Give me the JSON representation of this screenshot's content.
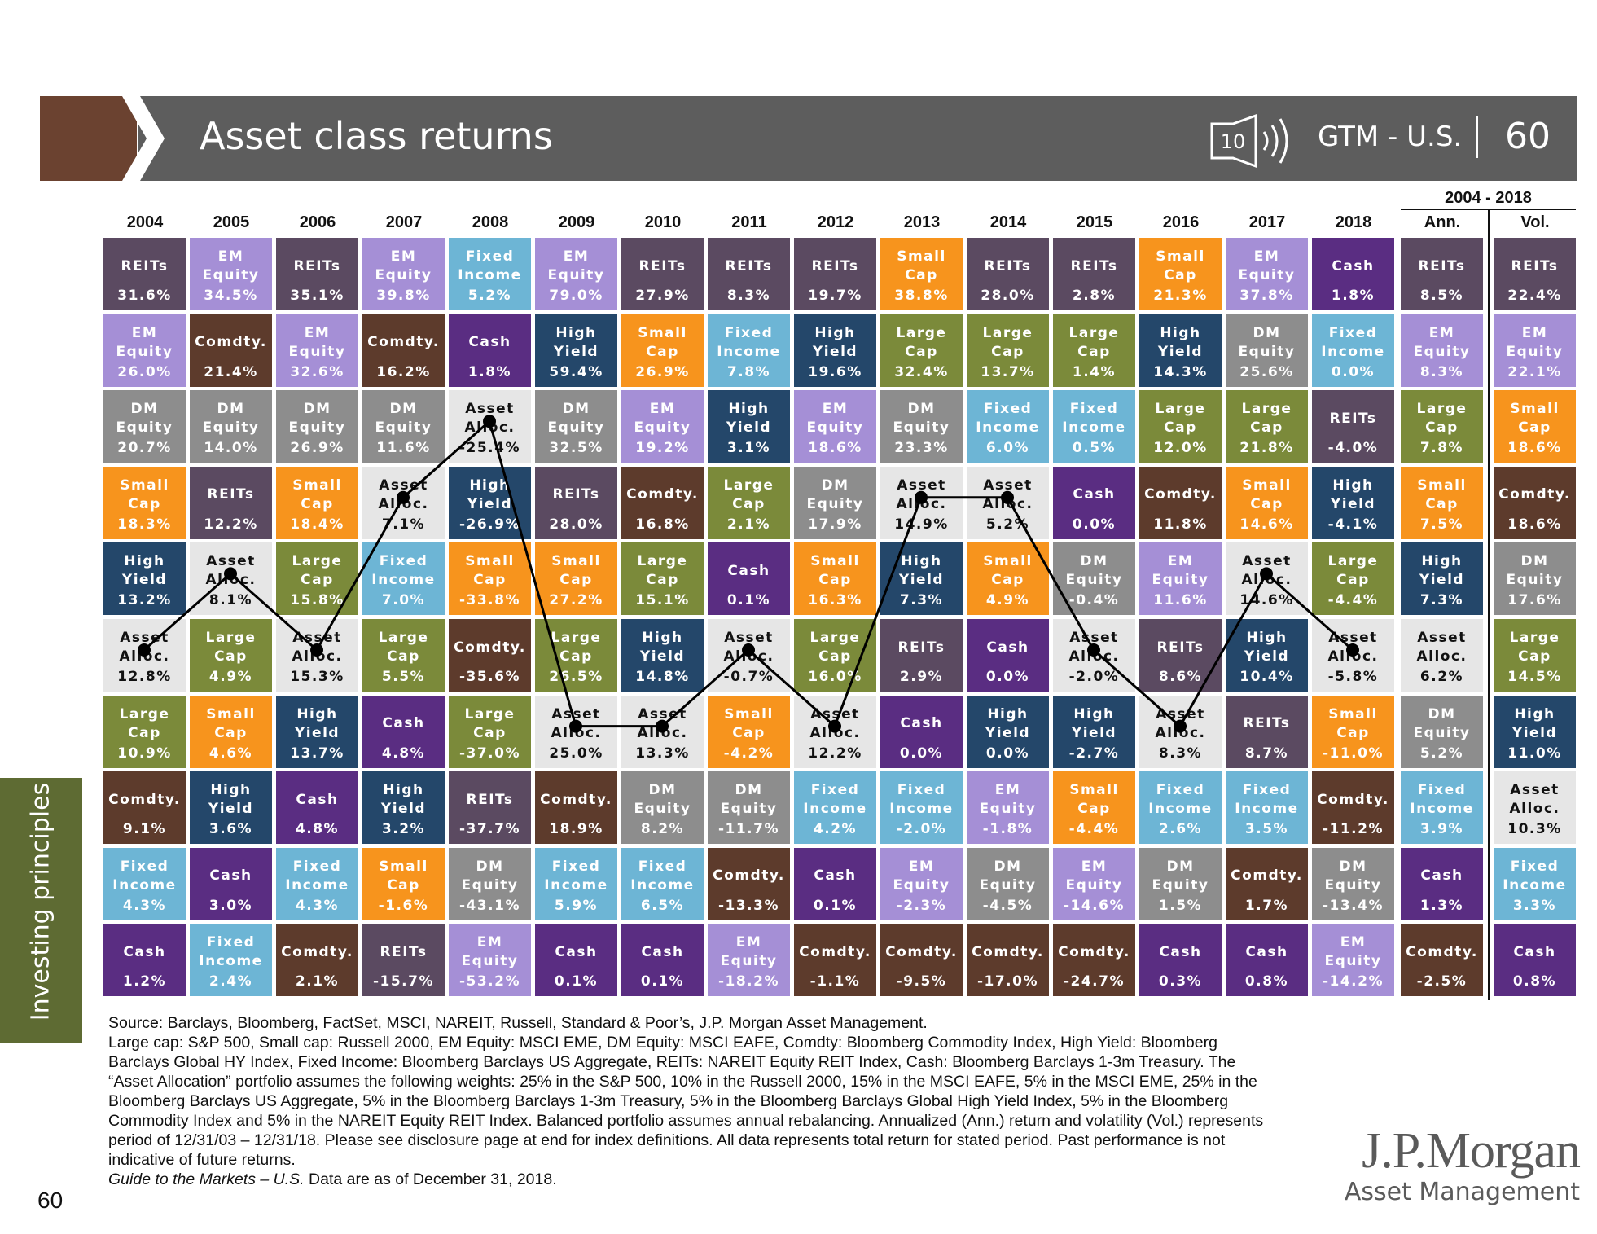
{
  "header": {
    "title": "Asset class returns",
    "icon": "10",
    "code": "GTM - U.S.",
    "page": "60"
  },
  "period": "2004 - 2018",
  "colors": {
    "REITs": {
      "fill": "#5b4a61",
      "text": "#ffffff"
    },
    "EM Equity": {
      "fill": "#a58fd6",
      "text": "#ffffff"
    },
    "DM Equity": {
      "fill": "#8d8d8d",
      "text": "#ffffff"
    },
    "Small Cap": {
      "fill": "#f7941d",
      "text": "#ffffff"
    },
    "High Yield": {
      "fill": "#24476a",
      "text": "#ffffff"
    },
    "Asset Alloc.": {
      "fill": "#e6e6e6",
      "text": "#111111"
    },
    "Large Cap": {
      "fill": "#7b8a3a",
      "text": "#ffffff"
    },
    "Comdty.": {
      "fill": "#5d3b2c",
      "text": "#ffffff"
    },
    "Fixed Income": {
      "fill": "#6db5d5",
      "text": "#ffffff"
    },
    "Cash": {
      "fill": "#5a2d82",
      "text": "#ffffff"
    }
  },
  "table": {
    "columns": [
      {
        "heading": "2004",
        "cells": [
          {
            "label": "REITs",
            "value": "31.6%"
          },
          {
            "label": "EM Equity",
            "value": "26.0%"
          },
          {
            "label": "DM Equity",
            "value": "20.7%"
          },
          {
            "label": "Small Cap",
            "value": "18.3%"
          },
          {
            "label": "High Yield",
            "value": "13.2%"
          },
          {
            "label": "Asset Alloc.",
            "value": "12.8%"
          },
          {
            "label": "Large Cap",
            "value": "10.9%"
          },
          {
            "label": "Comdty.",
            "value": "9.1%"
          },
          {
            "label": "Fixed Income",
            "value": "4.3%"
          },
          {
            "label": "Cash",
            "value": "1.2%"
          }
        ]
      },
      {
        "heading": "2005",
        "cells": [
          {
            "label": "EM Equity",
            "value": "34.5%"
          },
          {
            "label": "Comdty.",
            "value": "21.4%"
          },
          {
            "label": "DM Equity",
            "value": "14.0%"
          },
          {
            "label": "REITs",
            "value": "12.2%"
          },
          {
            "label": "Asset Alloc.",
            "value": "8.1%"
          },
          {
            "label": "Large Cap",
            "value": "4.9%"
          },
          {
            "label": "Small Cap",
            "value": "4.6%"
          },
          {
            "label": "High Yield",
            "value": "3.6%"
          },
          {
            "label": "Cash",
            "value": "3.0%"
          },
          {
            "label": "Fixed Income",
            "value": "2.4%"
          }
        ]
      },
      {
        "heading": "2006",
        "cells": [
          {
            "label": "REITs",
            "value": "35.1%"
          },
          {
            "label": "EM Equity",
            "value": "32.6%"
          },
          {
            "label": "DM Equity",
            "value": "26.9%"
          },
          {
            "label": "Small Cap",
            "value": "18.4%"
          },
          {
            "label": "Large Cap",
            "value": "15.8%"
          },
          {
            "label": "Asset Alloc.",
            "value": "15.3%"
          },
          {
            "label": "High Yield",
            "value": "13.7%"
          },
          {
            "label": "Cash",
            "value": "4.8%"
          },
          {
            "label": "Fixed Income",
            "value": "4.3%"
          },
          {
            "label": "Comdty.",
            "value": "2.1%"
          }
        ]
      },
      {
        "heading": "2007",
        "cells": [
          {
            "label": "EM Equity",
            "value": "39.8%"
          },
          {
            "label": "Comdty.",
            "value": "16.2%"
          },
          {
            "label": "DM Equity",
            "value": "11.6%"
          },
          {
            "label": "Asset Alloc.",
            "value": "7.1%"
          },
          {
            "label": "Fixed Income",
            "value": "7.0%"
          },
          {
            "label": "Large Cap",
            "value": "5.5%"
          },
          {
            "label": "Cash",
            "value": "4.8%"
          },
          {
            "label": "High Yield",
            "value": "3.2%"
          },
          {
            "label": "Small Cap",
            "value": "-1.6%"
          },
          {
            "label": "REITs",
            "value": "-15.7%"
          }
        ]
      },
      {
        "heading": "2008",
        "cells": [
          {
            "label": "Fixed Income",
            "value": "5.2%"
          },
          {
            "label": "Cash",
            "value": "1.8%"
          },
          {
            "label": "Asset Alloc.",
            "value": "-25.4%"
          },
          {
            "label": "High Yield",
            "value": "-26.9%"
          },
          {
            "label": "Small Cap",
            "value": "-33.8%"
          },
          {
            "label": "Comdty.",
            "value": "-35.6%"
          },
          {
            "label": "Large Cap",
            "value": "-37.0%"
          },
          {
            "label": "REITs",
            "value": "-37.7%"
          },
          {
            "label": "DM Equity",
            "value": "-43.1%"
          },
          {
            "label": "EM Equity",
            "value": "-53.2%"
          }
        ]
      },
      {
        "heading": "2009",
        "cells": [
          {
            "label": "EM Equity",
            "value": "79.0%"
          },
          {
            "label": "High Yield",
            "value": "59.4%"
          },
          {
            "label": "DM Equity",
            "value": "32.5%"
          },
          {
            "label": "REITs",
            "value": "28.0%"
          },
          {
            "label": "Small Cap",
            "value": "27.2%"
          },
          {
            "label": "Large Cap",
            "value": "26.5%"
          },
          {
            "label": "Asset Alloc.",
            "value": "25.0%"
          },
          {
            "label": "Comdty.",
            "value": "18.9%"
          },
          {
            "label": "Fixed Income",
            "value": "5.9%"
          },
          {
            "label": "Cash",
            "value": "0.1%"
          }
        ]
      },
      {
        "heading": "2010",
        "cells": [
          {
            "label": "REITs",
            "value": "27.9%"
          },
          {
            "label": "Small Cap",
            "value": "26.9%"
          },
          {
            "label": "EM Equity",
            "value": "19.2%"
          },
          {
            "label": "Comdty.",
            "value": "16.8%"
          },
          {
            "label": "Large Cap",
            "value": "15.1%"
          },
          {
            "label": "High Yield",
            "value": "14.8%"
          },
          {
            "label": "Asset Alloc.",
            "value": "13.3%"
          },
          {
            "label": "DM Equity",
            "value": "8.2%"
          },
          {
            "label": "Fixed Income",
            "value": "6.5%"
          },
          {
            "label": "Cash",
            "value": "0.1%"
          }
        ]
      },
      {
        "heading": "2011",
        "cells": [
          {
            "label": "REITs",
            "value": "8.3%"
          },
          {
            "label": "Fixed Income",
            "value": "7.8%"
          },
          {
            "label": "High Yield",
            "value": "3.1%"
          },
          {
            "label": "Large Cap",
            "value": "2.1%"
          },
          {
            "label": "Cash",
            "value": "0.1%"
          },
          {
            "label": "Asset Alloc.",
            "value": "-0.7%"
          },
          {
            "label": "Small Cap",
            "value": "-4.2%"
          },
          {
            "label": "DM Equity",
            "value": "-11.7%"
          },
          {
            "label": "Comdty.",
            "value": "-13.3%"
          },
          {
            "label": "EM Equity",
            "value": "-18.2%"
          }
        ]
      },
      {
        "heading": "2012",
        "cells": [
          {
            "label": "REITs",
            "value": "19.7%"
          },
          {
            "label": "High Yield",
            "value": "19.6%"
          },
          {
            "label": "EM Equity",
            "value": "18.6%"
          },
          {
            "label": "DM Equity",
            "value": "17.9%"
          },
          {
            "label": "Small Cap",
            "value": "16.3%"
          },
          {
            "label": "Large Cap",
            "value": "16.0%"
          },
          {
            "label": "Asset Alloc.",
            "value": "12.2%"
          },
          {
            "label": "Fixed Income",
            "value": "4.2%"
          },
          {
            "label": "Cash",
            "value": "0.1%"
          },
          {
            "label": "Comdty.",
            "value": "-1.1%"
          }
        ]
      },
      {
        "heading": "2013",
        "cells": [
          {
            "label": "Small Cap",
            "value": "38.8%"
          },
          {
            "label": "Large Cap",
            "value": "32.4%"
          },
          {
            "label": "DM Equity",
            "value": "23.3%"
          },
          {
            "label": "Asset Alloc.",
            "value": "14.9%"
          },
          {
            "label": "High Yield",
            "value": "7.3%"
          },
          {
            "label": "REITs",
            "value": "2.9%"
          },
          {
            "label": "Cash",
            "value": "0.0%"
          },
          {
            "label": "Fixed Income",
            "value": "-2.0%"
          },
          {
            "label": "EM Equity",
            "value": "-2.3%"
          },
          {
            "label": "Comdty.",
            "value": "-9.5%"
          }
        ]
      },
      {
        "heading": "2014",
        "cells": [
          {
            "label": "REITs",
            "value": "28.0%"
          },
          {
            "label": "Large Cap",
            "value": "13.7%"
          },
          {
            "label": "Fixed Income",
            "value": "6.0%"
          },
          {
            "label": "Asset Alloc.",
            "value": "5.2%"
          },
          {
            "label": "Small Cap",
            "value": "4.9%"
          },
          {
            "label": "Cash",
            "value": "0.0%"
          },
          {
            "label": "High Yield",
            "value": "0.0%"
          },
          {
            "label": "EM Equity",
            "value": "-1.8%"
          },
          {
            "label": "DM Equity",
            "value": "-4.5%"
          },
          {
            "label": "Comdty.",
            "value": "-17.0%"
          }
        ]
      },
      {
        "heading": "2015",
        "cells": [
          {
            "label": "REITs",
            "value": "2.8%"
          },
          {
            "label": "Large Cap",
            "value": "1.4%"
          },
          {
            "label": "Fixed Income",
            "value": "0.5%"
          },
          {
            "label": "Cash",
            "value": "0.0%"
          },
          {
            "label": "DM Equity",
            "value": "-0.4%"
          },
          {
            "label": "Asset Alloc.",
            "value": "-2.0%"
          },
          {
            "label": "High Yield",
            "value": "-2.7%"
          },
          {
            "label": "Small Cap",
            "value": "-4.4%"
          },
          {
            "label": "EM Equity",
            "value": "-14.6%"
          },
          {
            "label": "Comdty.",
            "value": "-24.7%"
          }
        ]
      },
      {
        "heading": "2016",
        "cells": [
          {
            "label": "Small Cap",
            "value": "21.3%"
          },
          {
            "label": "High Yield",
            "value": "14.3%"
          },
          {
            "label": "Large Cap",
            "value": "12.0%"
          },
          {
            "label": "Comdty.",
            "value": "11.8%"
          },
          {
            "label": "EM Equity",
            "value": "11.6%"
          },
          {
            "label": "REITs",
            "value": "8.6%"
          },
          {
            "label": "Asset Alloc.",
            "value": "8.3%"
          },
          {
            "label": "Fixed Income",
            "value": "2.6%"
          },
          {
            "label": "DM Equity",
            "value": "1.5%"
          },
          {
            "label": "Cash",
            "value": "0.3%"
          }
        ]
      },
      {
        "heading": "2017",
        "cells": [
          {
            "label": "EM Equity",
            "value": "37.8%"
          },
          {
            "label": "DM Equity",
            "value": "25.6%"
          },
          {
            "label": "Large Cap",
            "value": "21.8%"
          },
          {
            "label": "Small Cap",
            "value": "14.6%"
          },
          {
            "label": "Asset Alloc.",
            "value": "14.6%"
          },
          {
            "label": "High Yield",
            "value": "10.4%"
          },
          {
            "label": "REITs",
            "value": "8.7%"
          },
          {
            "label": "Fixed Income",
            "value": "3.5%"
          },
          {
            "label": "Comdty.",
            "value": "1.7%"
          },
          {
            "label": "Cash",
            "value": "0.8%"
          }
        ]
      },
      {
        "heading": "2018",
        "cells": [
          {
            "label": "Cash",
            "value": "1.8%"
          },
          {
            "label": "Fixed Income",
            "value": "0.0%"
          },
          {
            "label": "REITs",
            "value": "-4.0%"
          },
          {
            "label": "High Yield",
            "value": "-4.1%"
          },
          {
            "label": "Large Cap",
            "value": "-4.4%"
          },
          {
            "label": "Asset Alloc.",
            "value": "-5.8%"
          },
          {
            "label": "Small Cap",
            "value": "-11.0%"
          },
          {
            "label": "Comdty.",
            "value": "-11.2%"
          },
          {
            "label": "DM Equity",
            "value": "-13.4%"
          },
          {
            "label": "EM Equity",
            "value": "-14.2%"
          }
        ]
      },
      {
        "heading": "Ann.",
        "cells": [
          {
            "label": "REITs",
            "value": "8.5%"
          },
          {
            "label": "EM Equity",
            "value": "8.3%"
          },
          {
            "label": "Large Cap",
            "value": "7.8%"
          },
          {
            "label": "Small Cap",
            "value": "7.5%"
          },
          {
            "label": "High Yield",
            "value": "7.3%"
          },
          {
            "label": "Asset Alloc.",
            "value": "6.2%"
          },
          {
            "label": "DM Equity",
            "value": "5.2%"
          },
          {
            "label": "Fixed Income",
            "value": "3.9%"
          },
          {
            "label": "Cash",
            "value": "1.3%"
          },
          {
            "label": "Comdty.",
            "value": "-2.5%"
          }
        ]
      },
      {
        "heading": "Vol.",
        "cells": [
          {
            "label": "REITs",
            "value": "22.4%"
          },
          {
            "label": "EM Equity",
            "value": "22.1%"
          },
          {
            "label": "Small Cap",
            "value": "18.6%"
          },
          {
            "label": "Comdty.",
            "value": "18.6%"
          },
          {
            "label": "DM Equity",
            "value": "17.6%"
          },
          {
            "label": "Large Cap",
            "value": "14.5%"
          },
          {
            "label": "High Yield",
            "value": "11.0%"
          },
          {
            "label": "Asset Alloc.",
            "value": "10.3%"
          },
          {
            "label": "Fixed Income",
            "value": "3.3%"
          },
          {
            "label": "Cash",
            "value": "0.8%"
          }
        ]
      }
    ]
  },
  "side_tab": "Investing principles",
  "footnote": {
    "source": "Source: Barclays, Bloomberg, FactSet, MSCI, NAREIT, Russell, Standard & Poor’s, J.P. Morgan Asset Management.",
    "notes": "Large cap: S&P 500, Small cap: Russell 2000, EM Equity: MSCI EME, DM Equity: MSCI EAFE, Comdty: Bloomberg Commodity Index, High Yield: Bloomberg Barclays Global HY Index, Fixed Income: Bloomberg Barclays US Aggregate, REITs: NAREIT Equity REIT Index, Cash: Bloomberg Barclays 1-3m Treasury. The “Asset Allocation” portfolio assumes the following weights: 25% in the S&P 500, 10% in the Russell 2000, 15% in the MSCI EAFE, 5% in the MSCI EME, 25% in the Bloomberg Barclays US Aggregate, 5% in the Bloomberg Barclays 1-3m Treasury, 5% in the Bloomberg Barclays Global High Yield Index, 5% in the Bloomberg Commodity Index and 5% in the NAREIT Equity REIT Index. Balanced portfolio assumes annual rebalancing. Annualized (Ann.) return and volatility (Vol.) represents period of 12/31/03 – 12/31/18. Please see disclosure page at end for index definitions. All data represents total return for stated period. Past performance is not indicative of future returns.",
    "guide_italic": "Guide to the Markets – U.S.",
    "guide_rest": " Data are as of December 31, 2018."
  },
  "page_number": "60",
  "logo": {
    "name": "J.P.Morgan",
    "sub": "Asset Management"
  }
}
